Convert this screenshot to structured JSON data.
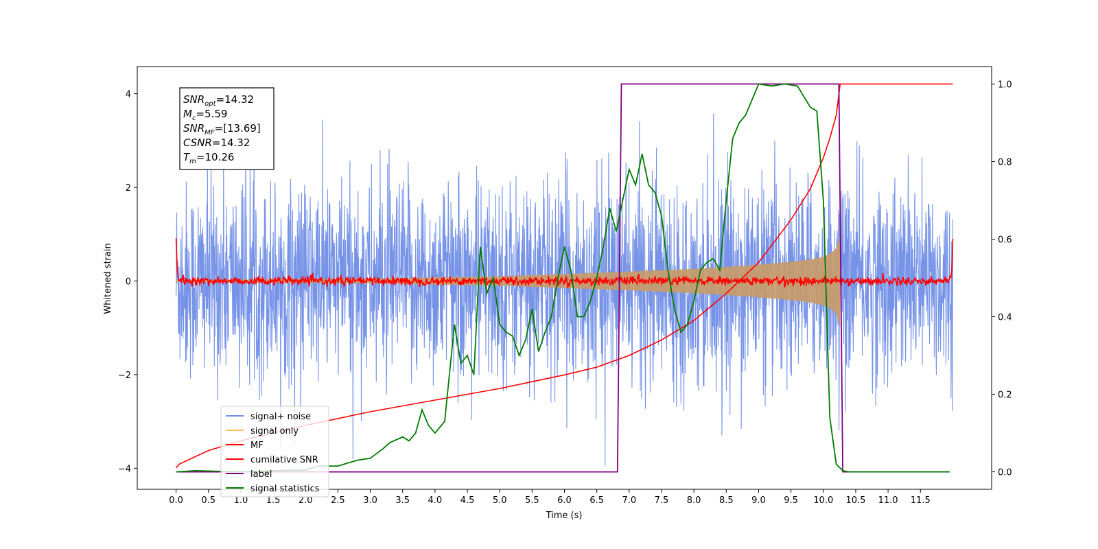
{
  "chart_data": {
    "type": "line",
    "title": "",
    "xlabel": "Time (s)",
    "ylabel": "Whitened strain",
    "y2label": "",
    "xlim": [
      -0.6,
      12.6
    ],
    "ylim": [
      -4.45,
      4.58
    ],
    "y2lim": [
      -0.045,
      1.045
    ],
    "xticks": [
      0.0,
      0.5,
      1.0,
      1.5,
      2.0,
      2.5,
      3.0,
      3.5,
      4.0,
      4.5,
      5.0,
      5.5,
      6.0,
      6.5,
      7.0,
      7.5,
      8.0,
      8.5,
      9.0,
      9.5,
      10.0,
      10.5,
      11.0,
      11.5
    ],
    "xtick_labels": [
      "0.0",
      "0.5",
      "1.0",
      "1.5",
      "2.0",
      "2.5",
      "3.0",
      "3.5",
      "4.0",
      "4.5",
      "5.0",
      "5.5",
      "6.0",
      "6.5",
      "7.0",
      "7.5",
      "8.0",
      "8.5",
      "9.0",
      "9.5",
      "10.0",
      "10.5",
      "11.0",
      "11.5"
    ],
    "yticks": [
      -4,
      -2,
      0,
      2,
      4
    ],
    "ytick_labels": [
      "−4",
      "−2",
      "0",
      "2",
      "4"
    ],
    "y2ticks": [
      0.0,
      0.2,
      0.4,
      0.6,
      0.8,
      1.0
    ],
    "y2tick_labels": [
      "0.0",
      "0.2",
      "0.4",
      "0.6",
      "0.8",
      "1.0"
    ],
    "grid": false,
    "legend_position": "lower-left",
    "legend": [
      {
        "name": "signal+ noise",
        "color": "#6f8de6"
      },
      {
        "name": "signal only",
        "color": "#ffbe5c"
      },
      {
        "name": "MF",
        "color": "#ff0000"
      },
      {
        "name": "cumilative SNR",
        "color": "#ff0000"
      },
      {
        "name": "label",
        "color": "#800080"
      },
      {
        "name": "signal statistics",
        "color": "#007a00"
      }
    ],
    "noise": {
      "name": "signal+ noise",
      "axis": "left",
      "x_range": [
        0.0,
        12.0
      ],
      "typical_envelope": [
        -2.6,
        2.6
      ],
      "max": 4.1,
      "min": -4.1
    },
    "signal_envelope": {
      "name": "signal only",
      "axis": "left",
      "x": [
        0.0,
        3.0,
        5.0,
        6.0,
        7.0,
        8.0,
        8.5,
        9.0,
        9.5,
        9.8,
        10.0,
        10.1,
        10.2,
        10.26
      ],
      "amplitude": [
        0.02,
        0.05,
        0.1,
        0.15,
        0.2,
        0.26,
        0.3,
        0.35,
        0.41,
        0.46,
        0.52,
        0.58,
        0.7,
        0.98
      ]
    },
    "mf": {
      "name": "MF",
      "axis": "left",
      "x_range": [
        0.0,
        12.0
      ],
      "level": 0.0,
      "ripple": 0.1,
      "start_value": 1.0,
      "end_value": 0.9
    },
    "cumulative_snr": {
      "name": "cumilative SNR",
      "axis": "right",
      "x": [
        0.0,
        0.05,
        0.5,
        1.0,
        2.0,
        3.0,
        4.0,
        5.0,
        6.0,
        6.5,
        7.0,
        7.5,
        8.0,
        8.5,
        9.0,
        9.5,
        9.8,
        10.0,
        10.1,
        10.2,
        10.26,
        12.0
      ],
      "values": [
        0.01,
        0.02,
        0.055,
        0.08,
        0.12,
        0.155,
        0.185,
        0.215,
        0.25,
        0.27,
        0.3,
        0.34,
        0.39,
        0.46,
        0.54,
        0.65,
        0.73,
        0.81,
        0.86,
        0.92,
        1.0,
        1.0
      ]
    },
    "label": {
      "name": "label",
      "axis": "right",
      "x": [
        0.0,
        6.82,
        6.88,
        10.24,
        10.3,
        11.95
      ],
      "values": [
        0.0,
        0.0,
        1.0,
        1.0,
        0.0,
        0.0
      ]
    },
    "signal_statistics": {
      "name": "signal statistics",
      "axis": "right",
      "x": [
        0.0,
        0.3,
        1.0,
        1.5,
        2.0,
        2.2,
        2.5,
        2.8,
        3.0,
        3.2,
        3.3,
        3.5,
        3.6,
        3.7,
        3.8,
        3.9,
        4.0,
        4.15,
        4.3,
        4.4,
        4.5,
        4.6,
        4.7,
        4.8,
        4.9,
        5.0,
        5.1,
        5.2,
        5.3,
        5.4,
        5.5,
        5.6,
        5.7,
        5.8,
        5.9,
        6.0,
        6.1,
        6.2,
        6.3,
        6.4,
        6.5,
        6.6,
        6.7,
        6.8,
        6.9,
        7.0,
        7.1,
        7.2,
        7.3,
        7.4,
        7.5,
        7.6,
        7.7,
        7.8,
        7.9,
        8.0,
        8.1,
        8.2,
        8.3,
        8.4,
        8.5,
        8.6,
        8.7,
        8.8,
        8.9,
        9.0,
        9.2,
        9.4,
        9.6,
        9.8,
        9.9,
        10.0,
        10.1,
        10.2,
        10.3,
        10.4,
        10.6,
        11.0,
        11.5,
        11.95
      ],
      "values": [
        0.0,
        0.003,
        0.0,
        0.003,
        0.005,
        0.015,
        0.015,
        0.03,
        0.035,
        0.06,
        0.075,
        0.09,
        0.08,
        0.1,
        0.16,
        0.12,
        0.1,
        0.13,
        0.38,
        0.28,
        0.3,
        0.25,
        0.58,
        0.46,
        0.5,
        0.38,
        0.36,
        0.35,
        0.3,
        0.34,
        0.42,
        0.31,
        0.36,
        0.4,
        0.5,
        0.58,
        0.52,
        0.4,
        0.4,
        0.44,
        0.5,
        0.58,
        0.68,
        0.62,
        0.7,
        0.78,
        0.74,
        0.82,
        0.74,
        0.72,
        0.66,
        0.52,
        0.42,
        0.36,
        0.38,
        0.44,
        0.52,
        0.54,
        0.55,
        0.52,
        0.7,
        0.86,
        0.9,
        0.92,
        0.96,
        1.0,
        0.995,
        1.0,
        0.995,
        0.94,
        0.93,
        0.7,
        0.14,
        0.02,
        0.003,
        0.0,
        0.0,
        0.0,
        0.0,
        0.0
      ]
    },
    "annotation": {
      "lines": [
        {
          "base": "SNR",
          "sub": "opt",
          "rest": "=14.32"
        },
        {
          "base": "M",
          "sub": "c",
          "rest": "=5.59"
        },
        {
          "base": "SNR",
          "sub": "MF",
          "rest": "=[13.69]"
        },
        {
          "base": "CSNR",
          "sub": "",
          "rest": "=14.32"
        },
        {
          "base": "T",
          "sub": "m",
          "rest": "=10.26"
        }
      ]
    }
  }
}
